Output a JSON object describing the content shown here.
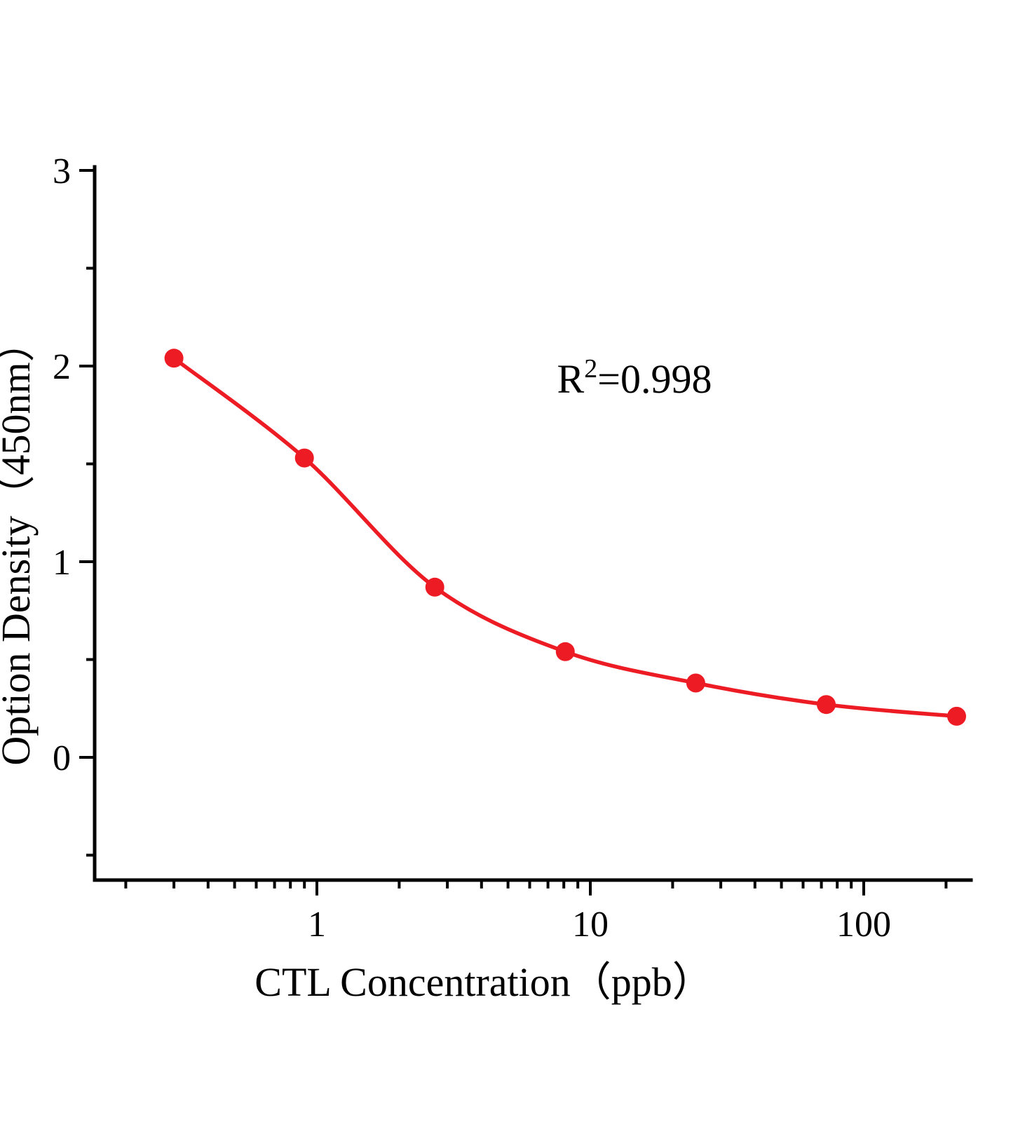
{
  "chart_data": {
    "type": "scatter",
    "curve": "sigmoidal-fit",
    "x": [
      0.3,
      0.9,
      2.7,
      8.1,
      24.3,
      72.9,
      218.7
    ],
    "y": [
      2.04,
      1.53,
      0.87,
      0.54,
      0.38,
      0.27,
      0.21
    ],
    "xlabel": "CTL  Concentration（ppb）",
    "ylabel": "Option Density（450nm）",
    "x_scale": "log",
    "y_scale": "linear",
    "xlim": [
      0.154,
      246
    ],
    "ylim": [
      -0.63,
      3
    ],
    "x_major_ticks": [
      1,
      10,
      100
    ],
    "x_major_tick_labels": [
      "1",
      "10",
      "100"
    ],
    "y_major_ticks": [
      0,
      1,
      2,
      3
    ],
    "y_major_tick_labels": [
      "0",
      "1",
      "2",
      "3"
    ],
    "y_minor_step": 0.5,
    "grid": false,
    "legend": "none",
    "annotation": {
      "base": "R",
      "sup": "2",
      "rest": "=0.998"
    },
    "colors": {
      "curve": "#ed1c24",
      "marker": "#ed1c24",
      "axis": "#000000",
      "background": "#ffffff"
    },
    "marker_radius": 13.5
  }
}
